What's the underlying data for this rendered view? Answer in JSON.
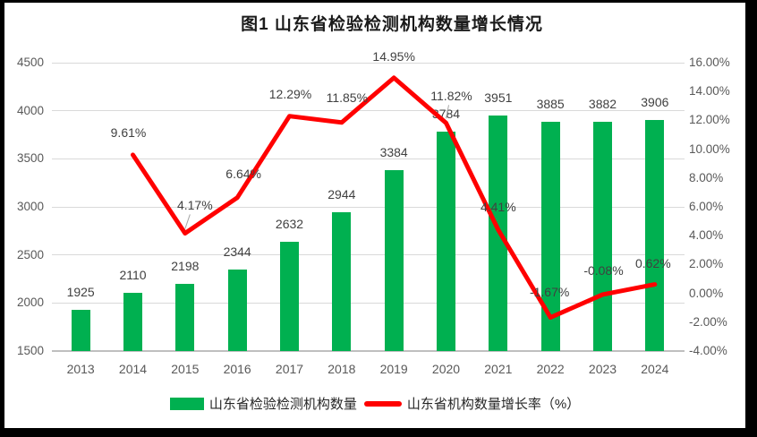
{
  "title": "图1  山东省检验检测机构数量增长情况",
  "legend": {
    "bars_label": "山东省检验检测机构数量",
    "line_label": "山东省机构数量增长率（%）"
  },
  "colors": {
    "bar": "#00B050",
    "line": "#FF0000",
    "grid": "#d9d9d9",
    "axis_line": "#bfbfbf",
    "axis_text": "#595959",
    "label_text": "#404040",
    "leader": "#a6a6a6",
    "frame": "#000000",
    "background": "#ffffff"
  },
  "chart_data": {
    "type": "bar+line combo",
    "title": "图1  山东省检验检测机构数量增长情况",
    "categories": [
      "2013",
      "2014",
      "2015",
      "2016",
      "2017",
      "2018",
      "2019",
      "2020",
      "2021",
      "2022",
      "2023",
      "2024"
    ],
    "series": [
      {
        "name": "山东省检验检测机构数量",
        "type": "bar",
        "axis": "left",
        "values": [
          1925,
          2110,
          2198,
          2344,
          2632,
          2944,
          3384,
          3784,
          3951,
          3885,
          3882,
          3906
        ],
        "labels": [
          "1925",
          "2110",
          "2198",
          "2344",
          "2632",
          "2944",
          "3384",
          "3784",
          "3951",
          "3885",
          "3882",
          "3906"
        ]
      },
      {
        "name": "山东省机构数量增长率（%）",
        "type": "line",
        "axis": "right",
        "values": [
          null,
          9.61,
          4.17,
          6.64,
          12.29,
          11.85,
          14.95,
          11.82,
          4.41,
          -1.67,
          -0.08,
          0.62
        ],
        "labels": [
          null,
          "9.61%",
          "4.17%",
          "6.64%",
          "12.29%",
          "11.85%",
          "14.95%",
          "11.82%",
          "4.41%",
          "-1.67%",
          "-0.08%",
          "0.62%"
        ],
        "label_offsets": [
          null,
          {
            "dx": -5,
            "dy": -25,
            "leader": false
          },
          {
            "dx": 11,
            "dy": -31,
            "leader": true
          },
          {
            "dx": 7,
            "dy": -27,
            "leader": false
          },
          {
            "dx": 1,
            "dy": -25,
            "leader": false
          },
          {
            "dx": 6,
            "dy": -28,
            "leader": false
          },
          {
            "dx": 0,
            "dy": -24,
            "leader": false
          },
          {
            "dx": 6,
            "dy": -30,
            "leader": true
          },
          {
            "dx": 0,
            "dy": -26,
            "leader": false
          },
          {
            "dx": -1,
            "dy": -28,
            "leader": false
          },
          {
            "dx": 1,
            "dy": -27,
            "leader": false
          },
          {
            "dx": -2,
            "dy": -24,
            "leader": false
          }
        ]
      }
    ],
    "left_axis": {
      "min": 1500,
      "max": 4500,
      "step": 500,
      "ticks": [
        "1500",
        "2000",
        "2500",
        "3000",
        "3500",
        "4000",
        "4500"
      ]
    },
    "right_axis": {
      "min": -4,
      "max": 16,
      "step": 2,
      "ticks": [
        "-4.00%",
        "-2.00%",
        "0.00%",
        "2.00%",
        "4.00%",
        "6.00%",
        "8.00%",
        "10.00%",
        "12.00%",
        "14.00%",
        "16.00%"
      ]
    },
    "grid": true,
    "legend_position": "bottom"
  }
}
